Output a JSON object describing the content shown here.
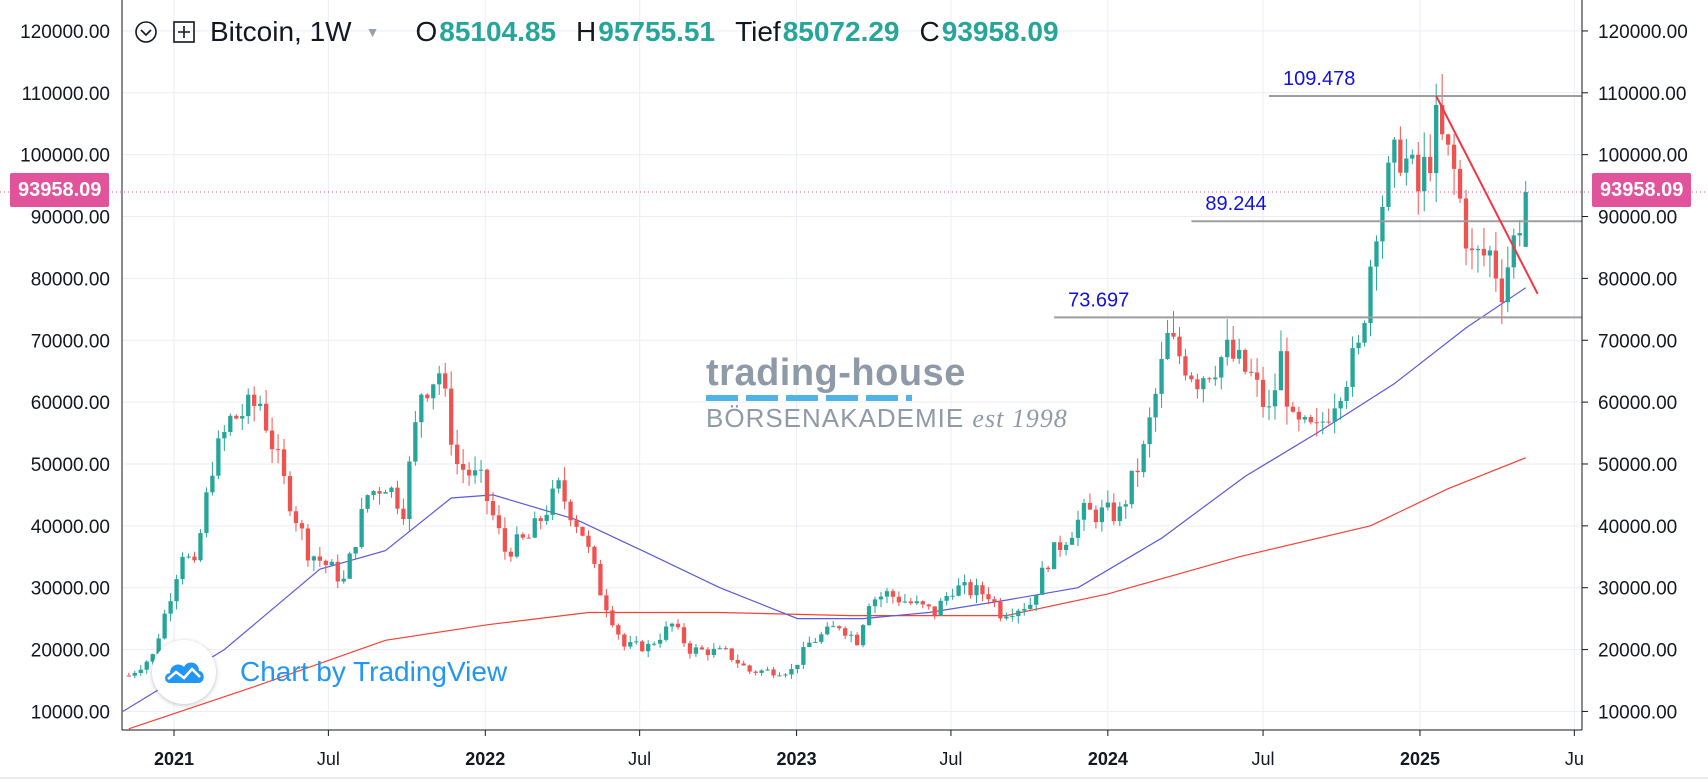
{
  "header": {
    "symbol": "Bitcoin, 1W",
    "open_label": "O",
    "open_value": "85104.85",
    "high_label": "H",
    "high_value": "95755.51",
    "low_label": "Tief",
    "low_value": "85072.29",
    "close_label": "C",
    "close_value": "93958.09"
  },
  "price_badge": "93958.09",
  "watermark": {
    "line1": "trading-house",
    "line2": "BÖRSENAKADEMIE",
    "line3": "est 1998"
  },
  "credit": "Chart by TradingView",
  "colors": {
    "up": "#26a69a",
    "down": "#ef5350",
    "sma_short": "#5b5bd6",
    "sma_long": "#f44336",
    "levels": "#9e9e9e",
    "level_label": "#1010e0",
    "trendline": "#f23645",
    "badge": "#e1539a"
  },
  "chart_data": {
    "type": "candlestick",
    "title": "Bitcoin, 1W",
    "ylim": [
      7000,
      125000
    ],
    "y_ticks": [
      "10000.00",
      "20000.00",
      "30000.00",
      "40000.00",
      "50000.00",
      "60000.00",
      "70000.00",
      "80000.00",
      "90000.00",
      "100000.00",
      "110000.00",
      "120000.00"
    ],
    "x_ticks": [
      {
        "date": "2021-01-01",
        "label": "2021"
      },
      {
        "date": "2021-07-01",
        "label": "Jul"
      },
      {
        "date": "2022-01-01",
        "label": "2022"
      },
      {
        "date": "2022-07-01",
        "label": "Jul"
      },
      {
        "date": "2023-01-01",
        "label": "2023"
      },
      {
        "date": "2023-07-01",
        "label": "Jul"
      },
      {
        "date": "2024-01-01",
        "label": "2024"
      },
      {
        "date": "2024-07-01",
        "label": "Jul"
      },
      {
        "date": "2025-01-01",
        "label": "2025"
      },
      {
        "date": "2025-07-01",
        "label": "Ju"
      }
    ],
    "xlim": [
      "2020-11-01",
      "2025-07-10"
    ],
    "price_path": [
      [
        "2020-11-09",
        15800
      ],
      [
        "2020-12-07",
        19000
      ],
      [
        "2020-12-28",
        29000
      ],
      [
        "2021-01-11",
        36000
      ],
      [
        "2021-01-25",
        33000
      ],
      [
        "2021-02-15",
        50000
      ],
      [
        "2021-03-08",
        57000
      ],
      [
        "2021-04-12",
        60000
      ],
      [
        "2021-05-10",
        47000
      ],
      [
        "2021-06-07",
        36000
      ],
      [
        "2021-07-05",
        33000
      ],
      [
        "2021-07-19",
        31000
      ],
      [
        "2021-08-16",
        45000
      ],
      [
        "2021-09-06",
        47000
      ],
      [
        "2021-09-27",
        43000
      ],
      [
        "2021-10-18",
        62000
      ],
      [
        "2021-11-08",
        65000
      ],
      [
        "2021-11-29",
        50000
      ],
      [
        "2021-12-27",
        47000
      ],
      [
        "2022-01-24",
        36000
      ],
      [
        "2022-02-21",
        38000
      ],
      [
        "2022-03-28",
        46000
      ],
      [
        "2022-04-25",
        39000
      ],
      [
        "2022-05-16",
        29500
      ],
      [
        "2022-06-13",
        20500
      ],
      [
        "2022-07-11",
        20500
      ],
      [
        "2022-08-08",
        24000
      ],
      [
        "2022-08-29",
        20000
      ],
      [
        "2022-10-10",
        19500
      ],
      [
        "2022-11-07",
        16500
      ],
      [
        "2022-12-26",
        16600
      ],
      [
        "2023-01-16",
        21000
      ],
      [
        "2023-02-20",
        24000
      ],
      [
        "2023-03-13",
        21500
      ],
      [
        "2023-03-27",
        28000
      ],
      [
        "2023-04-17",
        29000
      ],
      [
        "2023-06-12",
        26000
      ],
      [
        "2023-07-03",
        30000
      ],
      [
        "2023-08-14",
        29000
      ],
      [
        "2023-08-28",
        26000
      ],
      [
        "2023-10-02",
        27500
      ],
      [
        "2023-10-23",
        34500
      ],
      [
        "2023-12-04",
        42000
      ],
      [
        "2024-01-15",
        42000
      ],
      [
        "2024-02-12",
        52000
      ],
      [
        "2024-03-11",
        70000
      ],
      [
        "2024-04-15",
        64000
      ],
      [
        "2024-05-20",
        68000
      ],
      [
        "2024-06-17",
        64000
      ],
      [
        "2024-07-08",
        58000
      ],
      [
        "2024-07-22",
        67000
      ],
      [
        "2024-08-05",
        56000
      ],
      [
        "2024-09-02",
        55000
      ],
      [
        "2024-09-30",
        63000
      ],
      [
        "2024-10-21",
        68000
      ],
      [
        "2024-11-11",
        90000
      ],
      [
        "2024-12-09",
        101000
      ],
      [
        "2024-12-30",
        94000
      ],
      [
        "2025-01-20",
        104000
      ],
      [
        "2025-02-10",
        97000
      ],
      [
        "2025-03-03",
        83000
      ],
      [
        "2025-03-24",
        84000
      ],
      [
        "2025-04-07",
        79000
      ],
      [
        "2025-04-21",
        86000
      ],
      [
        "2025-05-05",
        93958
      ]
    ],
    "sma_short": [
      [
        "2020-11-02",
        10000
      ],
      [
        "2021-03-01",
        20000
      ],
      [
        "2021-06-21",
        33000
      ],
      [
        "2021-09-06",
        36000
      ],
      [
        "2021-11-22",
        44500
      ],
      [
        "2022-01-10",
        45000
      ],
      [
        "2022-04-18",
        41000
      ],
      [
        "2022-07-04",
        36000
      ],
      [
        "2022-10-03",
        30000
      ],
      [
        "2023-01-02",
        25000
      ],
      [
        "2023-03-20",
        25000
      ],
      [
        "2023-06-05",
        26000
      ],
      [
        "2023-09-04",
        28000
      ],
      [
        "2023-11-27",
        30000
      ],
      [
        "2024-03-04",
        38000
      ],
      [
        "2024-06-10",
        48000
      ],
      [
        "2024-09-02",
        55000
      ],
      [
        "2024-12-02",
        63000
      ],
      [
        "2025-02-24",
        72000
      ],
      [
        "2025-05-05",
        78500
      ]
    ],
    "sma_long": [
      [
        "2020-11-09",
        7200
      ],
      [
        "2021-04-05",
        14000
      ],
      [
        "2021-09-06",
        21500
      ],
      [
        "2022-01-03",
        24000
      ],
      [
        "2022-05-02",
        26000
      ],
      [
        "2022-10-03",
        26000
      ],
      [
        "2023-03-06",
        25500
      ],
      [
        "2023-09-04",
        25500
      ],
      [
        "2024-01-01",
        29000
      ],
      [
        "2024-06-03",
        35000
      ],
      [
        "2024-11-04",
        40000
      ],
      [
        "2025-02-03",
        46000
      ],
      [
        "2025-05-05",
        51000
      ]
    ],
    "levels": [
      {
        "value": 109478,
        "label": "109.478",
        "from": "2024-07-08"
      },
      {
        "value": 89244,
        "label": "89.244",
        "from": "2024-04-08"
      },
      {
        "value": 73697,
        "label": "73.697",
        "from": "2023-10-30"
      }
    ],
    "trendline": {
      "from": [
        "2025-01-20",
        109500
      ],
      "to": [
        "2025-05-19",
        77500
      ]
    },
    "last_price": 93958.09
  }
}
